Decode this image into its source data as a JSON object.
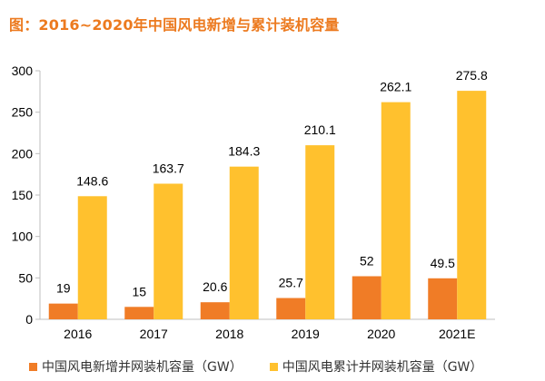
{
  "title": "图：2016~2020年中国风电新增与累计装机容量",
  "colors": {
    "title": "#ec7a1f",
    "new": "#f07c26",
    "cumulative": "#ffc12e",
    "axis": "#bfbfbf",
    "text": "#000000"
  },
  "chart_data": {
    "type": "bar",
    "title": "图：2016~2020年中国风电新增与累计装机容量",
    "categories": [
      "2016",
      "2017",
      "2018",
      "2019",
      "2020",
      "2021E"
    ],
    "series": [
      {
        "name": "中国风电新增并网装机容量（GW）",
        "values": [
          19,
          15,
          20.6,
          25.7,
          52,
          49.5
        ]
      },
      {
        "name": "中国风电累计并网装机容量（GW）",
        "values": [
          148.6,
          163.7,
          184.3,
          210.1,
          262.1,
          275.8
        ]
      }
    ],
    "value_labels": [
      [
        "19",
        "15",
        "20.6",
        "25.7",
        "52",
        "49.5"
      ],
      [
        "148.6",
        "163.7",
        "184.3",
        "210.1",
        "262.1",
        "275.8"
      ]
    ],
    "ylim": [
      0,
      300
    ],
    "yticks": [
      "0",
      "50",
      "100",
      "150",
      "200",
      "250",
      "300"
    ],
    "grid": false,
    "legend_position": "bottom"
  }
}
